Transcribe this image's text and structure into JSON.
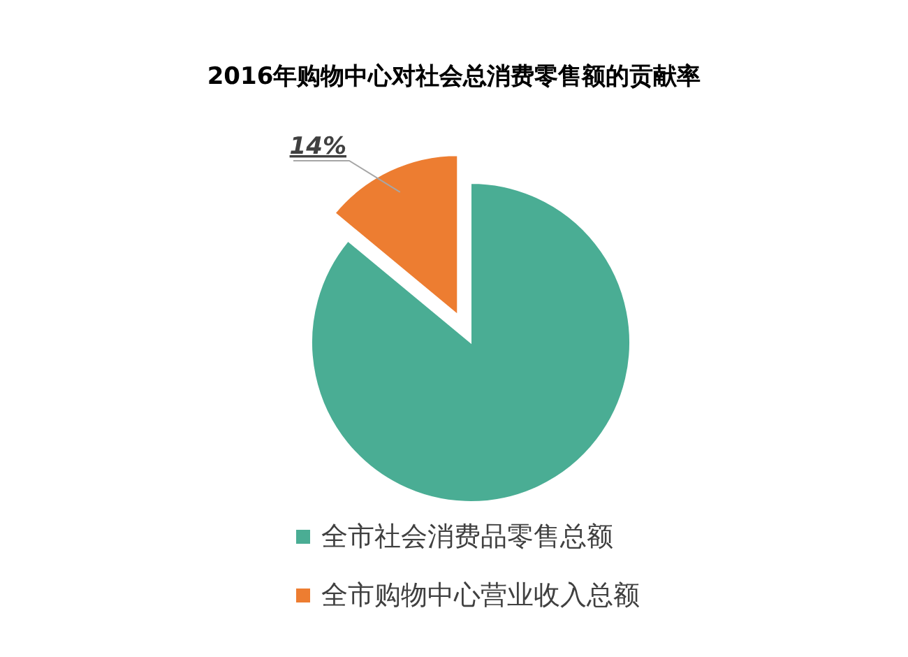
{
  "chart_data": {
    "type": "pie",
    "title": "2016年购物中心对社会总消费零售额的贡献率",
    "categories": [
      "全市社会消费品零售总额",
      "全市购物中心营业收入总额"
    ],
    "values": [
      86,
      14
    ],
    "colors": [
      "#4aad94",
      "#ed7d31"
    ],
    "value_labels": [
      null,
      "14%"
    ],
    "legend": "bottom"
  }
}
